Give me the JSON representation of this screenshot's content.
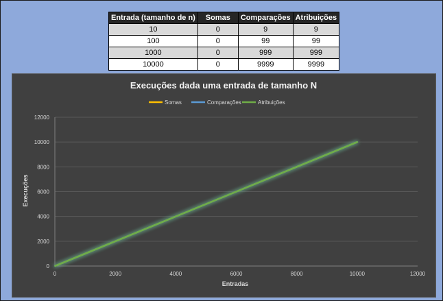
{
  "table": {
    "headers": [
      "Entrada (tamanho de n)",
      "Somas",
      "Comparações",
      "Atribuições"
    ],
    "rows": [
      [
        "10",
        "0",
        "9",
        "9"
      ],
      [
        "100",
        "0",
        "99",
        "99"
      ],
      [
        "1000",
        "0",
        "999",
        "999"
      ],
      [
        "10000",
        "0",
        "9999",
        "9999"
      ]
    ]
  },
  "chart_data": {
    "type": "line",
    "title": "Execuções dada uma entrada de tamanho N",
    "xlabel": "Entradas",
    "ylabel": "Execuções",
    "xlim": [
      0,
      12000
    ],
    "ylim": [
      0,
      12000
    ],
    "x_ticks": [
      "0",
      "2000",
      "4000",
      "6000",
      "8000",
      "10000",
      "12000"
    ],
    "y_ticks": [
      "0",
      "2000",
      "4000",
      "6000",
      "8000",
      "10000",
      "12000"
    ],
    "legend_position": "top",
    "grid": true,
    "series": [
      {
        "name": "Somas",
        "color": "#FFC000",
        "x": [
          10,
          100,
          1000,
          10000
        ],
        "y": [
          0,
          0,
          0,
          0
        ]
      },
      {
        "name": "Comparações",
        "color": "#5B9BD5",
        "x": [
          10,
          100,
          1000,
          10000
        ],
        "y": [
          9,
          99,
          999,
          9999
        ]
      },
      {
        "name": "Atribuições",
        "color": "#70AD47",
        "x": [
          10,
          100,
          1000,
          10000
        ],
        "y": [
          9,
          99,
          999,
          9999
        ]
      }
    ]
  }
}
